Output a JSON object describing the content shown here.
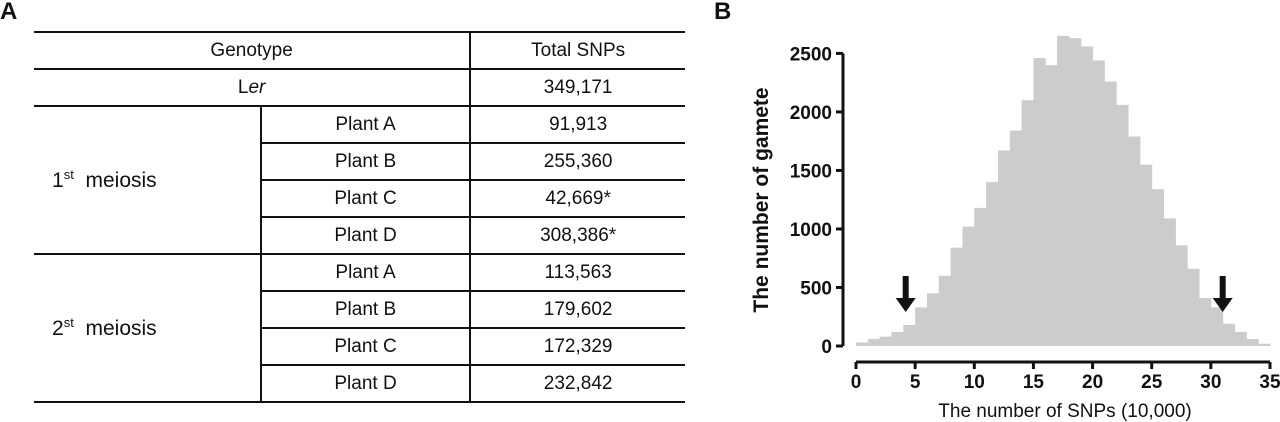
{
  "panel_a": {
    "letter": "A",
    "header": {
      "genotype": "Genotype",
      "total": "Total SNPs"
    },
    "ler": {
      "prefix": "L",
      "italic": "er",
      "total": "349,171"
    },
    "groups": [
      {
        "base": "1",
        "sup": "st",
        "label": "meiosis",
        "rows": [
          {
            "plant": "Plant A",
            "total": "91,913"
          },
          {
            "plant": "Plant B",
            "total": "255,360"
          },
          {
            "plant": "Plant C",
            "total": "42,669*"
          },
          {
            "plant": "Plant D",
            "total": "308,386*"
          }
        ]
      },
      {
        "base": "2",
        "sup": "st",
        "label": "meiosis",
        "rows": [
          {
            "plant": "Plant A",
            "total": "113,563"
          },
          {
            "plant": "Plant B",
            "total": "179,602"
          },
          {
            "plant": "Plant C",
            "total": "172,329"
          },
          {
            "plant": "Plant D",
            "total": "232,842"
          }
        ]
      }
    ]
  },
  "panel_b": {
    "letter": "B"
  },
  "chart_data": {
    "type": "bar",
    "xlabel": "The number of SNPs (10,000)",
    "ylabel": "The number of gamete",
    "xlim": [
      0,
      35
    ],
    "ylim": [
      0,
      2700
    ],
    "xticks": [
      0,
      5,
      10,
      15,
      20,
      25,
      30,
      35
    ],
    "yticks": [
      0,
      500,
      1000,
      1500,
      2000,
      2500
    ],
    "bin_width": 1,
    "bin_starts": [
      0,
      1,
      2,
      3,
      4,
      5,
      6,
      7,
      8,
      9,
      10,
      11,
      12,
      13,
      14,
      15,
      16,
      17,
      18,
      19,
      20,
      21,
      22,
      23,
      24,
      25,
      26,
      27,
      28,
      29,
      30,
      31,
      32,
      33,
      34
    ],
    "values": [
      30,
      60,
      80,
      120,
      180,
      330,
      450,
      600,
      840,
      1020,
      1180,
      1400,
      1670,
      1840,
      2100,
      2460,
      2400,
      2650,
      2630,
      2560,
      2440,
      2260,
      2060,
      1790,
      1550,
      1340,
      1090,
      860,
      660,
      410,
      330,
      190,
      120,
      60,
      20
    ],
    "bar_color": "#cccccc",
    "arrows_at": [
      4.2,
      31.0
    ],
    "grid": false,
    "legend": "none"
  }
}
